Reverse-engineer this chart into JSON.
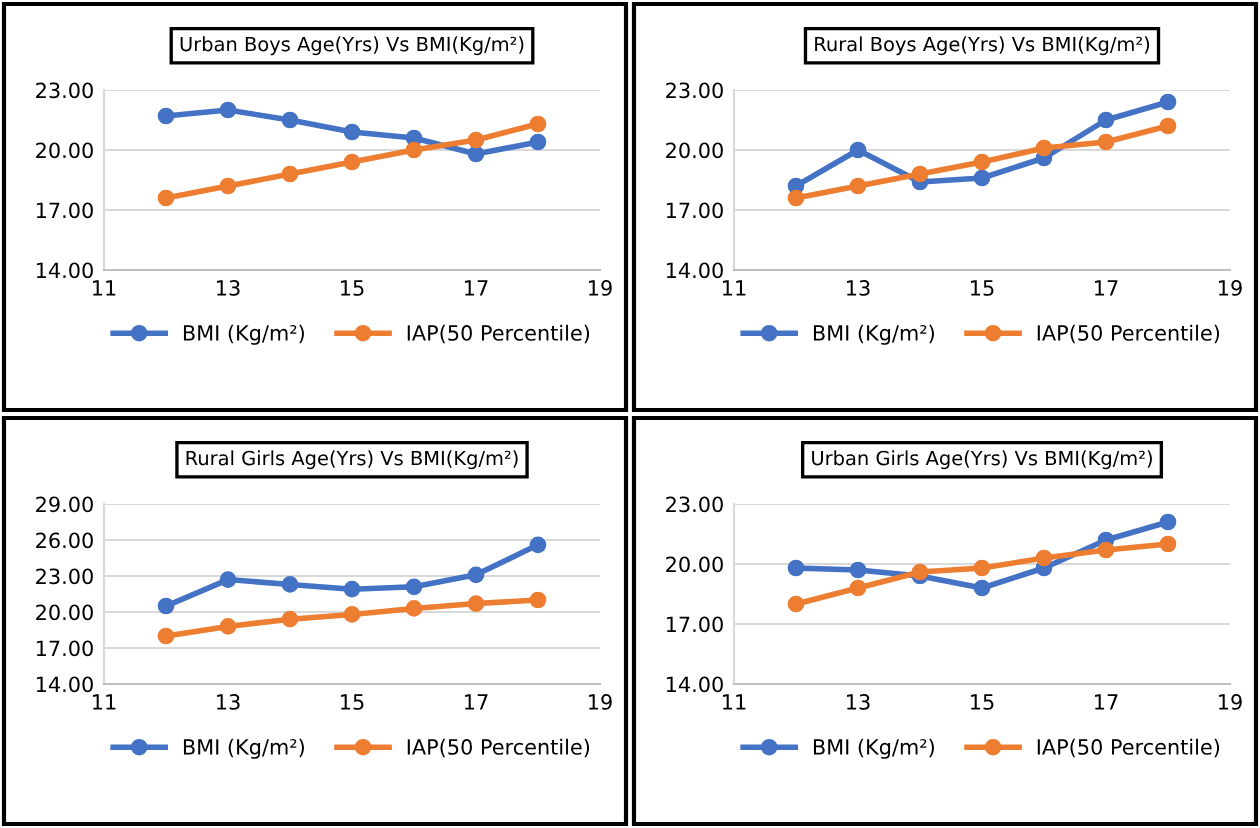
{
  "chart_data": [
    {
      "type": "line",
      "title": "Urban Boys Age(Yrs) Vs BMI(Kg/m²)",
      "x": [
        12,
        13,
        14,
        15,
        16,
        17,
        18
      ],
      "marker": "circle",
      "grid": "y",
      "legend": "bottom",
      "xlim": [
        11,
        19
      ],
      "xticks": [
        11,
        13,
        15,
        17,
        19
      ],
      "ylim": [
        14,
        23
      ],
      "yticks": [
        {
          "value": 14,
          "label": "14.00"
        },
        {
          "value": 17,
          "label": "17.00"
        },
        {
          "value": 20,
          "label": "20.00"
        },
        {
          "value": 23,
          "label": "23.00"
        }
      ],
      "series": [
        {
          "name": "BMI (Kg/m²)",
          "color": "#4472c4",
          "values": [
            21.7,
            22.0,
            21.5,
            20.9,
            20.6,
            19.8,
            20.4
          ]
        },
        {
          "name": "IAP(50 Percentile)",
          "color": "#ed7d31",
          "values": [
            17.6,
            18.2,
            18.8,
            19.4,
            20.0,
            20.5,
            21.3
          ]
        }
      ]
    },
    {
      "type": "line",
      "title": "Rural Boys Age(Yrs) Vs BMI(Kg/m²)",
      "x": [
        12,
        13,
        14,
        15,
        16,
        17,
        18
      ],
      "marker": "circle",
      "grid": "y",
      "legend": "bottom",
      "xlim": [
        11,
        19
      ],
      "xticks": [
        11,
        13,
        15,
        17,
        19
      ],
      "ylim": [
        14,
        23
      ],
      "yticks": [
        {
          "value": 14,
          "label": "14.00"
        },
        {
          "value": 17,
          "label": "17.00"
        },
        {
          "value": 20,
          "label": "20.00"
        },
        {
          "value": 23,
          "label": "23.00"
        }
      ],
      "series": [
        {
          "name": "BMI (Kg/m²)",
          "color": "#4472c4",
          "values": [
            18.2,
            20.0,
            18.4,
            18.6,
            19.6,
            21.5,
            22.4
          ]
        },
        {
          "name": "IAP(50 Percentile)",
          "color": "#ed7d31",
          "values": [
            17.6,
            18.2,
            18.8,
            19.4,
            20.1,
            20.4,
            21.2
          ]
        }
      ]
    },
    {
      "type": "line",
      "title": "Rural Girls Age(Yrs) Vs BMI(Kg/m²)",
      "x": [
        12,
        13,
        14,
        15,
        16,
        17,
        18
      ],
      "marker": "circle",
      "grid": "y",
      "legend": "bottom",
      "xlim": [
        11,
        19
      ],
      "xticks": [
        11,
        13,
        15,
        17,
        19
      ],
      "ylim": [
        14,
        29
      ],
      "yticks": [
        {
          "value": 14,
          "label": "14.00"
        },
        {
          "value": 17,
          "label": "17.00"
        },
        {
          "value": 20,
          "label": "20.00"
        },
        {
          "value": 23,
          "label": "23.00"
        },
        {
          "value": 26,
          "label": "26.00"
        },
        {
          "value": 29,
          "label": "29.00"
        }
      ],
      "series": [
        {
          "name": "BMI (Kg/m²)",
          "color": "#4472c4",
          "values": [
            20.5,
            22.7,
            22.3,
            21.9,
            22.1,
            23.1,
            25.6
          ]
        },
        {
          "name": "IAP(50 Percentile)",
          "color": "#ed7d31",
          "values": [
            18.0,
            18.8,
            19.4,
            19.8,
            20.3,
            20.7,
            21.0
          ]
        }
      ]
    },
    {
      "type": "line",
      "title": "Urban Girls Age(Yrs) Vs BMI(Kg/m²)",
      "x": [
        12,
        13,
        14,
        15,
        16,
        17,
        18
      ],
      "marker": "circle",
      "grid": "y",
      "legend": "bottom",
      "xlim": [
        11,
        19
      ],
      "xticks": [
        11,
        13,
        15,
        17,
        19
      ],
      "ylim": [
        14,
        23
      ],
      "yticks": [
        {
          "value": 14,
          "label": "14.00"
        },
        {
          "value": 17,
          "label": "17.00"
        },
        {
          "value": 20,
          "label": "20.00"
        },
        {
          "value": 23,
          "label": "23.00"
        }
      ],
      "series": [
        {
          "name": "BMI (Kg/m²)",
          "color": "#4472c4",
          "values": [
            19.8,
            19.7,
            19.4,
            18.8,
            19.8,
            21.2,
            22.1
          ]
        },
        {
          "name": "IAP(50 Percentile)",
          "color": "#ed7d31",
          "values": [
            18.0,
            18.8,
            19.6,
            19.8,
            20.3,
            20.7,
            21.0
          ]
        }
      ]
    }
  ]
}
